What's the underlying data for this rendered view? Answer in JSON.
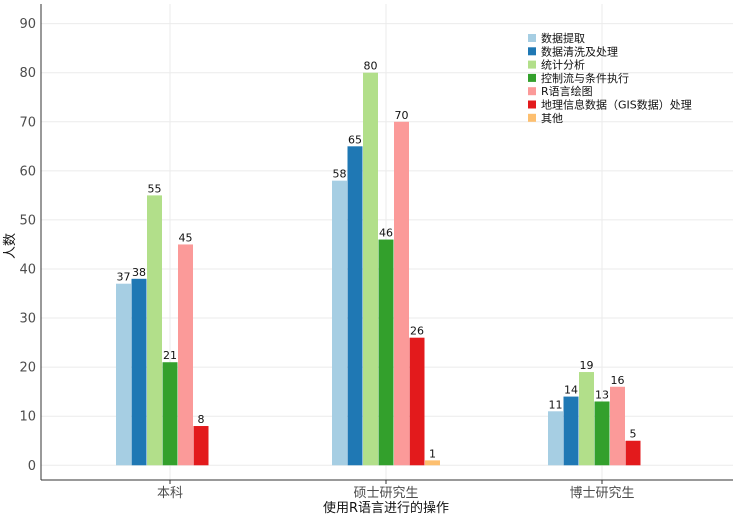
{
  "chart_data": {
    "type": "bar",
    "title": "",
    "xlabel": "使用R语言进行的操作",
    "ylabel": "人数",
    "ylim": [
      -3,
      94
    ],
    "yticks": [
      0,
      10,
      20,
      30,
      40,
      50,
      60,
      70,
      80,
      90
    ],
    "grid": true,
    "legend_position": "top-right",
    "categories": [
      "本科",
      "硕士研究生",
      "博士研究生"
    ],
    "series": [
      {
        "name": "数据提取",
        "color": "#a6cee3",
        "values": [
          37,
          58,
          11
        ]
      },
      {
        "name": "数据清洗及处理",
        "color": "#1f78b4",
        "values": [
          38,
          65,
          14
        ]
      },
      {
        "name": "统计分析",
        "color": "#b2df8a",
        "values": [
          55,
          80,
          19
        ]
      },
      {
        "name": "控制流与条件执行",
        "color": "#33a02c",
        "values": [
          21,
          46,
          13
        ]
      },
      {
        "name": "R语言绘图",
        "color": "#fb9a99",
        "values": [
          45,
          70,
          16
        ]
      },
      {
        "name": "地理信息数据（GIS数据）处理",
        "color": "#e31a1c",
        "values": [
          8,
          26,
          5
        ]
      },
      {
        "name": "其他",
        "color": "#fdbf6f",
        "values": [
          null,
          1,
          null
        ]
      }
    ]
  }
}
